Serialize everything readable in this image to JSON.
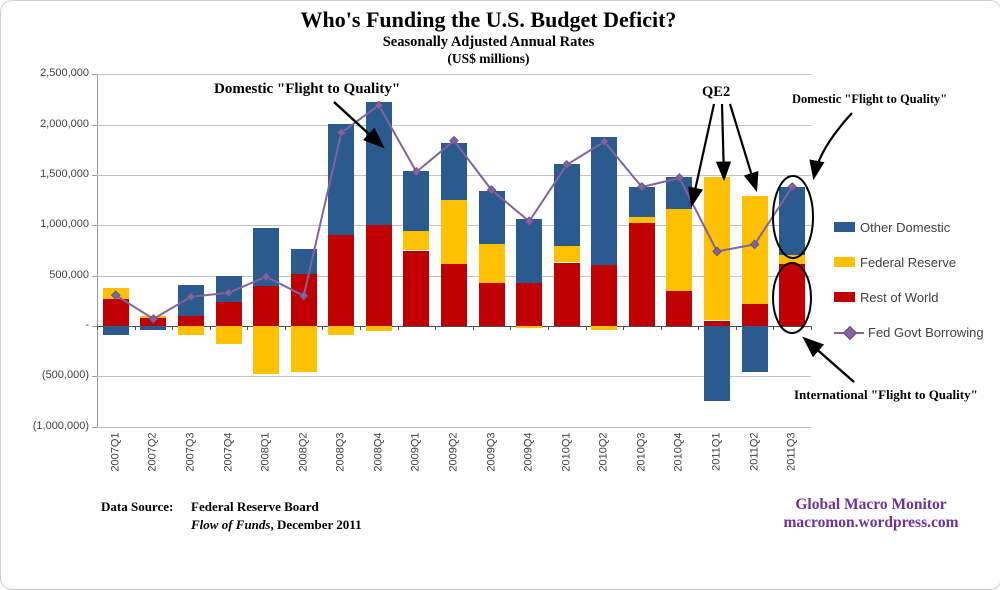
{
  "chart_data": {
    "type": "stacked-bar-with-line",
    "title": "Who's Funding the U.S. Budget Deficit?",
    "subtitle1": "Seasonally Adjusted Annual Rates",
    "subtitle2": "(US$ millions)",
    "xlabel": "",
    "ylabel": "",
    "units": "US$ millions",
    "ylim": [
      -1000000,
      2500000
    ],
    "ytick_step": 500000,
    "yticks": [
      2500000,
      2000000,
      1500000,
      1000000,
      500000,
      0,
      -500000,
      -1000000
    ],
    "ytick_labels": [
      "2,500,000",
      "2,000,000",
      "1,500,000",
      "1,000,000",
      "500,000",
      "-",
      "(500,000)",
      "(1,000,000)"
    ],
    "grid": "horizontal",
    "categories": [
      "2007Q1",
      "2007Q2",
      "2007Q3",
      "2007Q4",
      "2008Q1",
      "2008Q2",
      "2008Q3",
      "2008Q4",
      "2009Q1",
      "2009Q2",
      "2009Q3",
      "2009Q4",
      "2010Q1",
      "2010Q2",
      "2010Q3",
      "2010Q4",
      "2011Q1",
      "2011Q2",
      "2011Q3"
    ],
    "series": [
      {
        "name": "Rest of World",
        "type": "bar",
        "color": "#C00000",
        "values": [
          270000,
          75000,
          100000,
          235000,
          400000,
          520000,
          900000,
          1000000,
          750000,
          620000,
          425000,
          425000,
          630000,
          610000,
          1020000,
          350000,
          55000,
          220000,
          615000
        ]
      },
      {
        "name": "Federal Reserve",
        "type": "bar",
        "color": "#FFC000",
        "values": [
          105000,
          25000,
          -90000,
          -175000,
          -480000,
          -460000,
          -85000,
          -50000,
          190000,
          635000,
          390000,
          -20000,
          160000,
          -40000,
          60000,
          810000,
          1420000,
          1070000,
          90000
        ]
      },
      {
        "name": "Other Domestic",
        "type": "bar",
        "color": "#2A5A8E",
        "values": [
          -90000,
          -40000,
          310000,
          265000,
          570000,
          245000,
          1110000,
          1220000,
          595000,
          560000,
          530000,
          635000,
          815000,
          1270000,
          300000,
          320000,
          -740000,
          -460000,
          680000
        ]
      },
      {
        "name": "Fed Govt Borrowing",
        "type": "line",
        "color": "#8064A2",
        "marker": "diamond",
        "values": [
          305000,
          70000,
          290000,
          330000,
          490000,
          300000,
          1920000,
          2190000,
          1530000,
          1840000,
          1350000,
          1040000,
          1600000,
          1830000,
          1380000,
          1470000,
          740000,
          810000,
          1380000
        ]
      }
    ],
    "legend": {
      "position": "right",
      "entries": [
        {
          "label": "Other Domestic",
          "color": "#2A5A8E",
          "marker": "swatch"
        },
        {
          "label": "Federal Reserve",
          "color": "#FFC000",
          "marker": "swatch"
        },
        {
          "label": "Rest of World",
          "color": "#C00000",
          "marker": "swatch"
        },
        {
          "label": "Fed Govt Borrowing",
          "color": "#8064A2",
          "marker": "line-diamond"
        }
      ]
    }
  },
  "annotations": {
    "domestic_left": "Domestic \"Flight to Quality\"",
    "qe2": "QE2",
    "domestic_right": "Domestic \"Flight to Quality\"",
    "international": "International \"Flight to Quality\""
  },
  "source": {
    "label": "Data Source:",
    "line1": "Federal Reserve Board",
    "line2_italic": "Flow of Funds",
    "line2_rest": ", December 2011"
  },
  "branding": {
    "line1": "Global Macro Monitor",
    "line2": "macromon.wordpress.com",
    "color": "#7030A0"
  },
  "colors": {
    "gridline": "#c3c3c3",
    "zero_line": "#4d4d4d",
    "axis": "#9a9a9a",
    "annotation": "#000000"
  }
}
